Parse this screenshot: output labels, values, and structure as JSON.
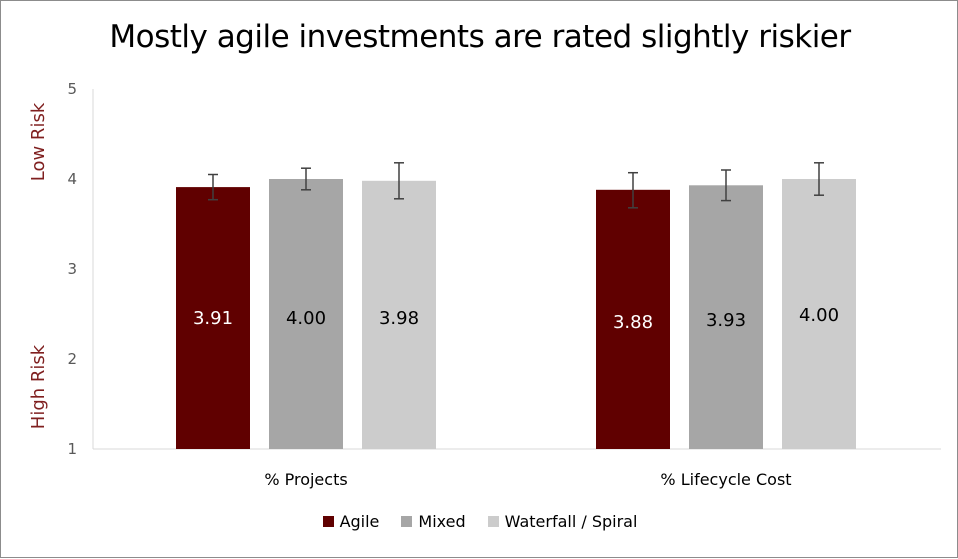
{
  "chart_data": {
    "type": "bar",
    "title": "Mostly agile investments are rated slightly riskier",
    "categories": [
      "% Projects",
      "% Lifecycle Cost"
    ],
    "series": [
      {
        "name": "Agile",
        "color": "#600000",
        "label_color": "#ffffff",
        "values": [
          3.91,
          3.88
        ],
        "labels": [
          "3.91",
          "3.88"
        ],
        "err_low": [
          3.77,
          3.68
        ],
        "err_high": [
          4.05,
          4.07
        ]
      },
      {
        "name": "Mixed",
        "color": "#a6a6a6",
        "label_color": "#000000",
        "values": [
          4.0,
          3.93
        ],
        "labels": [
          "4.00",
          "3.93"
        ],
        "err_low": [
          3.88,
          3.76
        ],
        "err_high": [
          4.12,
          4.1
        ]
      },
      {
        "name": "Waterfall / Spiral",
        "color": "#cccccc",
        "label_color": "#000000",
        "values": [
          3.98,
          4.0
        ],
        "labels": [
          "3.98",
          "4.00"
        ],
        "err_low": [
          3.78,
          3.82
        ],
        "err_high": [
          4.18,
          4.18
        ]
      }
    ],
    "ylim": [
      1,
      5
    ],
    "yticks": [
      "1",
      "2",
      "3",
      "4",
      "5"
    ],
    "xlabel": "",
    "ylabel": "",
    "y_annotations": {
      "top": "Low Risk",
      "bottom": "High Risk",
      "color": "#7f1f1f"
    },
    "grid": false,
    "legend_position": "bottom"
  }
}
